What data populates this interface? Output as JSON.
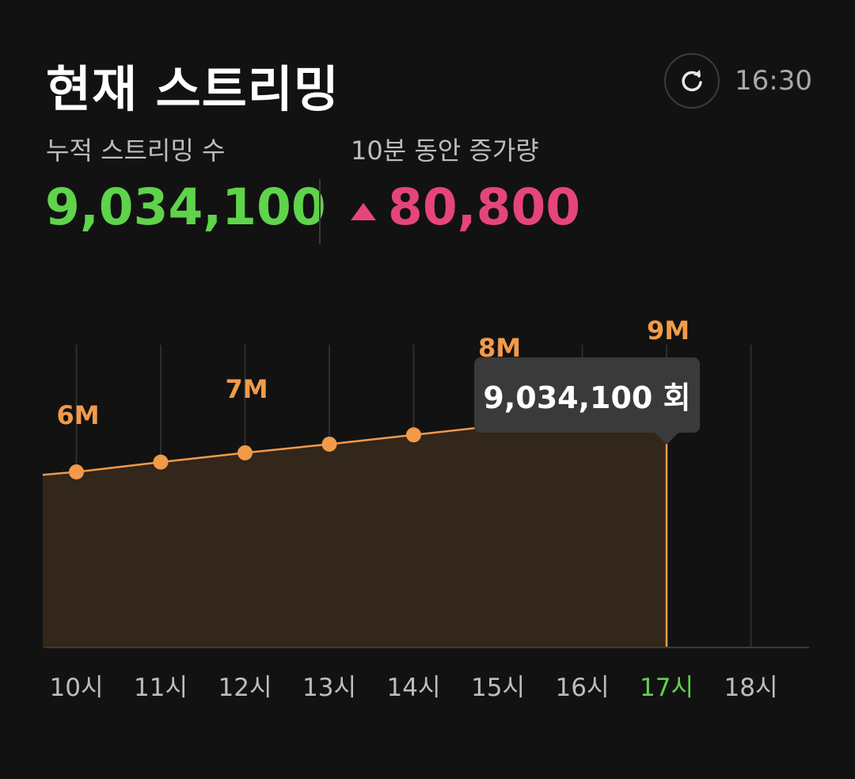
{
  "header": {
    "title": "현재 스트리밍",
    "time": "16:30",
    "refresh_icon": "refresh-icon"
  },
  "stats": {
    "total_label": "누적 스트리밍 수",
    "total_value": "9,034,100",
    "increase_label": "10분 동안 증가량",
    "increase_value": "80,800",
    "increase_icon": "triangle-up-icon"
  },
  "colors": {
    "total": "#5fd34a",
    "increase": "#e5457a",
    "accent": "#f29a4a",
    "current_hour": "#5fd34a"
  },
  "tooltip": {
    "text": "9,034,100 회"
  },
  "chart_data": {
    "type": "area",
    "x": [
      "10시",
      "11시",
      "12시",
      "13시",
      "14시",
      "15시",
      "16시",
      "17시",
      "18시"
    ],
    "xlim": [
      "9.6시",
      "18.7시"
    ],
    "series": [
      {
        "x": [
          9.6,
          10,
          11,
          12,
          13,
          14,
          15,
          16,
          17
        ],
        "values": [
          6480000,
          6530000,
          6700000,
          6860000,
          7010000,
          7170000,
          7330000,
          7490000,
          7650000
        ]
      }
    ],
    "markers_at": [
      10,
      11,
      12,
      13,
      14
    ],
    "current_hour": "17시",
    "annotations": [
      {
        "text": "6M",
        "x": 10,
        "y": 6000000
      },
      {
        "text": "7M",
        "x": 12,
        "y": 7000000
      },
      {
        "text": "8M",
        "x": 15,
        "y": 8000000
      },
      {
        "text": "9M",
        "x": 17,
        "y": 9000000
      }
    ],
    "ylim": [
      3500000,
      9000000
    ],
    "grid": true
  }
}
